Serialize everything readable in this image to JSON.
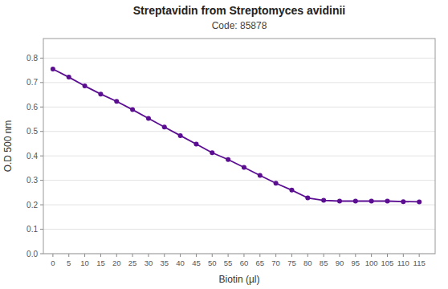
{
  "chart_data": {
    "type": "line",
    "title": "Streptavidin from Streptomyces avidinii",
    "subtitle": "Code: 85878",
    "xlabel": "Biotin (µl)",
    "ylabel": "O.D 500 nm",
    "x": [
      0,
      5,
      10,
      15,
      20,
      25,
      30,
      35,
      40,
      45,
      50,
      55,
      60,
      65,
      70,
      75,
      80,
      85,
      90,
      95,
      100,
      105,
      110,
      115
    ],
    "values": [
      0.755,
      0.722,
      0.686,
      0.653,
      0.623,
      0.589,
      0.553,
      0.518,
      0.483,
      0.448,
      0.413,
      0.385,
      0.353,
      0.32,
      0.288,
      0.26,
      0.228,
      0.218,
      0.215,
      0.215,
      0.215,
      0.215,
      0.213,
      0.212
    ],
    "color": "#5B0E91",
    "marker": "circle",
    "xlim": [
      -3,
      120
    ],
    "ylim": [
      0,
      0.88
    ],
    "xticks": [
      0,
      5,
      10,
      15,
      20,
      25,
      30,
      35,
      40,
      45,
      50,
      55,
      60,
      65,
      70,
      75,
      80,
      85,
      90,
      95,
      100,
      105,
      110,
      115
    ],
    "yticks": [
      {
        "value": 0,
        "label": "0.0"
      },
      0.1,
      0.2,
      0.3,
      0.4,
      0.5,
      0.6,
      0.7,
      0.8
    ],
    "grid": true
  }
}
